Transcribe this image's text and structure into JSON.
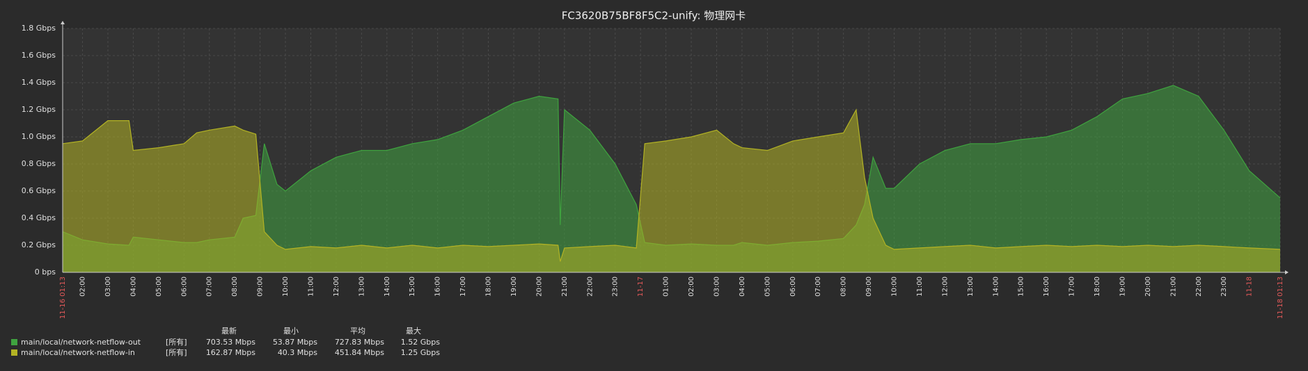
{
  "chart_data": {
    "type": "area",
    "title": "FC3620B75BF8F5C2-unify: 物理网卡",
    "x": [
      "11-16 01:13",
      "11-16 02:00",
      "11-16 03:00",
      "11-16 03:50",
      "11-16 04:00",
      "11-16 05:00",
      "11-16 06:00",
      "11-16 06:30",
      "11-16 07:00",
      "11-16 08:00",
      "11-16 08:20",
      "11-16 08:50",
      "11-16 09:10",
      "11-16 09:40",
      "11-16 10:00",
      "11-16 11:00",
      "11-16 12:00",
      "11-16 13:00",
      "11-16 14:00",
      "11-16 15:00",
      "11-16 16:00",
      "11-16 17:00",
      "11-16 18:00",
      "11-16 19:00",
      "11-16 20:00",
      "11-16 20:45",
      "11-16 20:50",
      "11-16 21:00",
      "11-16 22:00",
      "11-16 23:00",
      "11-16 23:50",
      "11-17 00:10",
      "11-17 01:00",
      "11-17 02:00",
      "11-17 03:00",
      "11-17 03:40",
      "11-17 04:00",
      "11-17 05:00",
      "11-17 06:00",
      "11-17 07:00",
      "11-17 08:00",
      "11-17 08:30",
      "11-17 08:50",
      "11-17 09:10",
      "11-17 09:40",
      "11-17 10:00",
      "11-17 11:00",
      "11-17 12:00",
      "11-17 13:00",
      "11-17 14:00",
      "11-17 15:00",
      "11-17 16:00",
      "11-17 17:00",
      "11-17 18:00",
      "11-17 19:00",
      "11-17 20:00",
      "11-17 21:00",
      "11-17 22:00",
      "11-17 23:00",
      "11-18 00:00",
      "11-18 01:13"
    ],
    "series": [
      {
        "name": "main/local/network-netflow-out",
        "color": "#3fa33f",
        "values": [
          0.3,
          0.24,
          0.21,
          0.2,
          0.26,
          0.24,
          0.22,
          0.22,
          0.24,
          0.26,
          0.4,
          0.42,
          0.95,
          0.65,
          0.6,
          0.75,
          0.85,
          0.9,
          0.9,
          0.95,
          0.98,
          1.05,
          1.15,
          1.25,
          1.3,
          1.28,
          0.35,
          1.2,
          1.05,
          0.8,
          0.5,
          0.22,
          0.2,
          0.21,
          0.2,
          0.2,
          0.22,
          0.2,
          0.22,
          0.23,
          0.25,
          0.35,
          0.5,
          0.85,
          0.62,
          0.62,
          0.8,
          0.9,
          0.95,
          0.95,
          0.98,
          1.0,
          1.05,
          1.15,
          1.28,
          1.32,
          1.38,
          1.3,
          1.05,
          0.75,
          0.55
        ]
      },
      {
        "name": "main/local/network-netflow-in",
        "color": "#b3b324",
        "values": [
          0.95,
          0.97,
          1.12,
          1.12,
          0.9,
          0.92,
          0.95,
          1.03,
          1.05,
          1.08,
          1.05,
          1.02,
          0.3,
          0.2,
          0.17,
          0.19,
          0.18,
          0.2,
          0.18,
          0.2,
          0.18,
          0.2,
          0.19,
          0.2,
          0.21,
          0.2,
          0.08,
          0.18,
          0.19,
          0.2,
          0.18,
          0.95,
          0.97,
          1.0,
          1.05,
          0.95,
          0.92,
          0.9,
          0.97,
          1.0,
          1.03,
          1.2,
          0.7,
          0.4,
          0.2,
          0.17,
          0.18,
          0.19,
          0.2,
          0.18,
          0.19,
          0.2,
          0.19,
          0.2,
          0.19,
          0.2,
          0.19,
          0.2,
          0.19,
          0.18,
          0.17
        ]
      }
    ],
    "xlim": [
      "11-16 01:13",
      "11-18 01:13"
    ],
    "xticks": [
      {
        "value": "11-16 01:13",
        "label": "11-16 01:13"
      },
      {
        "value": "11-16 02:00",
        "label": "02:00"
      },
      {
        "value": "11-16 03:00",
        "label": "03:00"
      },
      {
        "value": "11-16 04:00",
        "label": "04:00"
      },
      {
        "value": "11-16 05:00",
        "label": "05:00"
      },
      {
        "value": "11-16 06:00",
        "label": "06:00"
      },
      {
        "value": "11-16 07:00",
        "label": "07:00"
      },
      {
        "value": "11-16 08:00",
        "label": "08:00"
      },
      {
        "value": "11-16 09:00",
        "label": "09:00"
      },
      {
        "value": "11-16 10:00",
        "label": "10:00"
      },
      {
        "value": "11-16 11:00",
        "label": "11:00"
      },
      {
        "value": "11-16 12:00",
        "label": "12:00"
      },
      {
        "value": "11-16 13:00",
        "label": "13:00"
      },
      {
        "value": "11-16 14:00",
        "label": "14:00"
      },
      {
        "value": "11-16 15:00",
        "label": "15:00"
      },
      {
        "value": "11-16 16:00",
        "label": "16:00"
      },
      {
        "value": "11-16 17:00",
        "label": "17:00"
      },
      {
        "value": "11-16 18:00",
        "label": "18:00"
      },
      {
        "value": "11-16 19:00",
        "label": "19:00"
      },
      {
        "value": "11-16 20:00",
        "label": "20:00"
      },
      {
        "value": "11-16 21:00",
        "label": "21:00"
      },
      {
        "value": "11-16 22:00",
        "label": "22:00"
      },
      {
        "value": "11-16 23:00",
        "label": "23:00"
      },
      {
        "value": "11-17 00:00",
        "label": "11-17"
      },
      {
        "value": "11-17 01:00",
        "label": "01:00"
      },
      {
        "value": "11-17 02:00",
        "label": "02:00"
      },
      {
        "value": "11-17 03:00",
        "label": "03:00"
      },
      {
        "value": "11-17 04:00",
        "label": "04:00"
      },
      {
        "value": "11-17 05:00",
        "label": "05:00"
      },
      {
        "value": "11-17 06:00",
        "label": "06:00"
      },
      {
        "value": "11-17 07:00",
        "label": "07:00"
      },
      {
        "value": "11-17 08:00",
        "label": "08:00"
      },
      {
        "value": "11-17 09:00",
        "label": "09:00"
      },
      {
        "value": "11-17 10:00",
        "label": "10:00"
      },
      {
        "value": "11-17 11:00",
        "label": "11:00"
      },
      {
        "value": "11-17 12:00",
        "label": "12:00"
      },
      {
        "value": "11-17 13:00",
        "label": "13:00"
      },
      {
        "value": "11-17 14:00",
        "label": "14:00"
      },
      {
        "value": "11-17 15:00",
        "label": "15:00"
      },
      {
        "value": "11-17 16:00",
        "label": "16:00"
      },
      {
        "value": "11-17 17:00",
        "label": "17:00"
      },
      {
        "value": "11-17 18:00",
        "label": "18:00"
      },
      {
        "value": "11-17 19:00",
        "label": "19:00"
      },
      {
        "value": "11-17 20:00",
        "label": "20:00"
      },
      {
        "value": "11-17 21:00",
        "label": "21:00"
      },
      {
        "value": "11-17 22:00",
        "label": "22:00"
      },
      {
        "value": "11-17 23:00",
        "label": "23:00"
      },
      {
        "value": "11-18 00:00",
        "label": "11-18"
      },
      {
        "value": "11-18 01:13",
        "label": "11-18 01:13"
      }
    ],
    "ylim": [
      0,
      1.8
    ],
    "yticks": [
      {
        "value": 0,
        "label": "0 bps"
      },
      {
        "value": 0.2,
        "label": "0.2 Gbps"
      },
      {
        "value": 0.4,
        "label": "0.4 Gbps"
      },
      {
        "value": 0.6,
        "label": "0.6 Gbps"
      },
      {
        "value": 0.8,
        "label": "0.8 Gbps"
      },
      {
        "value": 1.0,
        "label": "1.0 Gbps"
      },
      {
        "value": 1.2,
        "label": "1.2 Gbps"
      },
      {
        "value": 1.4,
        "label": "1.4 Gbps"
      },
      {
        "value": 1.6,
        "label": "1.6 Gbps"
      },
      {
        "value": 1.8,
        "label": "1.8 Gbps"
      }
    ],
    "grid": true,
    "legend": {
      "columns": [
        "最新",
        "最小",
        "平均",
        "最大"
      ],
      "rows": [
        {
          "scope": "[所有]",
          "stats": [
            "703.53 Mbps",
            "53.87 Mbps",
            "727.83 Mbps",
            "1.52 Gbps"
          ]
        },
        {
          "scope": "[所有]",
          "stats": [
            "162.87 Mbps",
            "40.3 Mbps",
            "451.84 Mbps",
            "1.25 Gbps"
          ]
        }
      ]
    }
  }
}
